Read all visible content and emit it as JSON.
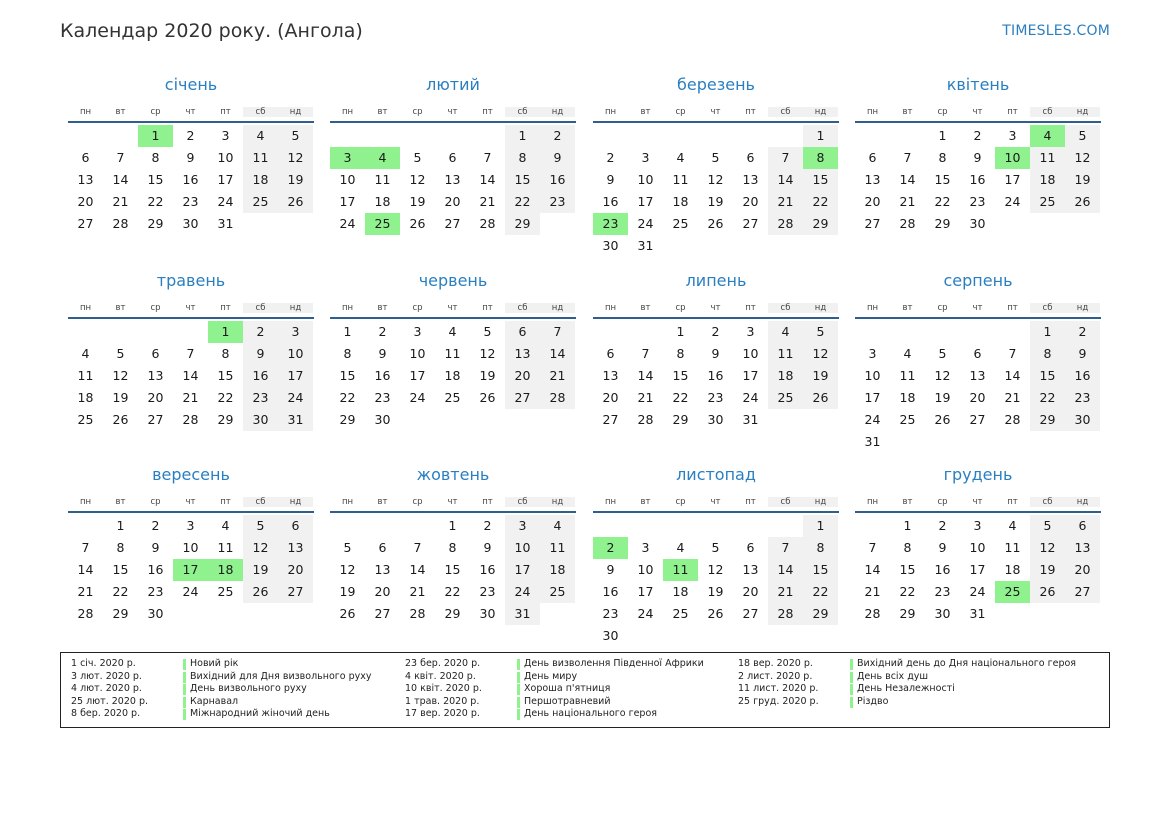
{
  "title": "Календар 2020 року. (Ангола)",
  "brand": "TIMESLES.COM",
  "weekdays": [
    "пн",
    "вт",
    "ср",
    "чт",
    "пт",
    "сб",
    "нд"
  ],
  "months": [
    {
      "name": "січень",
      "offset": 2,
      "days": 31,
      "holidays": [
        1
      ]
    },
    {
      "name": "лютий",
      "offset": 5,
      "days": 29,
      "holidays": [
        3,
        4,
        25
      ]
    },
    {
      "name": "березень",
      "offset": 6,
      "days": 31,
      "holidays": [
        8,
        23
      ]
    },
    {
      "name": "квітень",
      "offset": 2,
      "days": 30,
      "holidays": [
        4,
        10
      ]
    },
    {
      "name": "травень",
      "offset": 4,
      "days": 31,
      "holidays": [
        1
      ]
    },
    {
      "name": "червень",
      "offset": 0,
      "days": 30,
      "holidays": []
    },
    {
      "name": "липень",
      "offset": 2,
      "days": 31,
      "holidays": []
    },
    {
      "name": "серпень",
      "offset": 5,
      "days": 31,
      "holidays": []
    },
    {
      "name": "вересень",
      "offset": 1,
      "days": 30,
      "holidays": [
        17,
        18
      ]
    },
    {
      "name": "жовтень",
      "offset": 3,
      "days": 31,
      "holidays": []
    },
    {
      "name": "листопад",
      "offset": 6,
      "days": 30,
      "holidays": [
        2,
        11
      ]
    },
    {
      "name": "грудень",
      "offset": 1,
      "days": 31,
      "holidays": [
        25
      ]
    }
  ],
  "legend": [
    [
      {
        "date": "1 січ. 2020 р.",
        "name": "Новий рік"
      },
      {
        "date": "3 лют. 2020 р.",
        "name": "Вихідний для Дня визвольного руху"
      },
      {
        "date": "4 лют. 2020 р.",
        "name": "День визвольного руху"
      },
      {
        "date": "25 лют. 2020 р.",
        "name": "Карнавал"
      },
      {
        "date": "8 бер. 2020 р.",
        "name": "Міжнародний жіночий день"
      }
    ],
    [
      {
        "date": "23 бер. 2020 р.",
        "name": "День визволення Південної Африки"
      },
      {
        "date": "4 квіт. 2020 р.",
        "name": "День миру"
      },
      {
        "date": "10 квіт. 2020 р.",
        "name": "Хороша п'ятниця"
      },
      {
        "date": "1 трав. 2020 р.",
        "name": "Першотравневий"
      },
      {
        "date": "17 вер. 2020 р.",
        "name": "День національного героя"
      }
    ],
    [
      {
        "date": "18 вер. 2020 р.",
        "name": "Вихідний день до Дня національного героя"
      },
      {
        "date": "2 лист. 2020 р.",
        "name": "День всіх душ"
      },
      {
        "date": "11 лист. 2020 р.",
        "name": "День Незалежності"
      },
      {
        "date": "25 груд. 2020 р.",
        "name": "Різдво"
      }
    ]
  ],
  "colors": {
    "accent": "#2a7fc1",
    "holiday": "#8ff28f",
    "weekend": "#f1f1f1",
    "rule": "#2f5f8f"
  }
}
